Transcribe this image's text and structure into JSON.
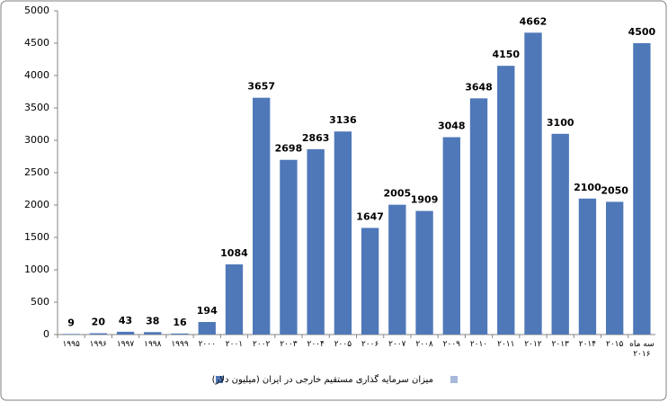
{
  "chart_data": {
    "type": "bar",
    "categories": [
      "۱۹۹۵",
      "۱۹۹۶",
      "۱۹۹۷",
      "۱۹۹۸",
      "۱۹۹۹",
      "۲۰۰۰",
      "۲۰۰۱",
      "۲۰۰۲",
      "۲۰۰۳",
      "۲۰۰۴",
      "۲۰۰۵",
      "۲۰۰۶",
      "۲۰۰۷",
      "۲۰۰۸",
      "۲۰۰۹",
      "۲۰۱۰",
      "۲۰۱۱",
      "۲۰۱۲",
      "۲۰۱۳",
      "۲۰۱۴",
      "۲۰۱۵",
      "سه ماه ۲۰۱۶"
    ],
    "series": [
      {
        "name": "میزان سرمایه گذاری مستقیم خارجی در ایران  (میلیون دلار)",
        "color": "#4f78b8",
        "values": [
          9,
          20,
          43,
          38,
          16,
          194,
          1084,
          3657,
          2698,
          2863,
          3136,
          1647,
          2005,
          1909,
          3048,
          3648,
          4150,
          4662,
          3100,
          2100,
          2050,
          4500
        ]
      }
    ],
    "ylim": [
      0,
      5000
    ],
    "yticks": [
      0,
      500,
      1000,
      1500,
      2000,
      2500,
      3000,
      3500,
      4000,
      4500,
      5000
    ],
    "grid": false
  }
}
